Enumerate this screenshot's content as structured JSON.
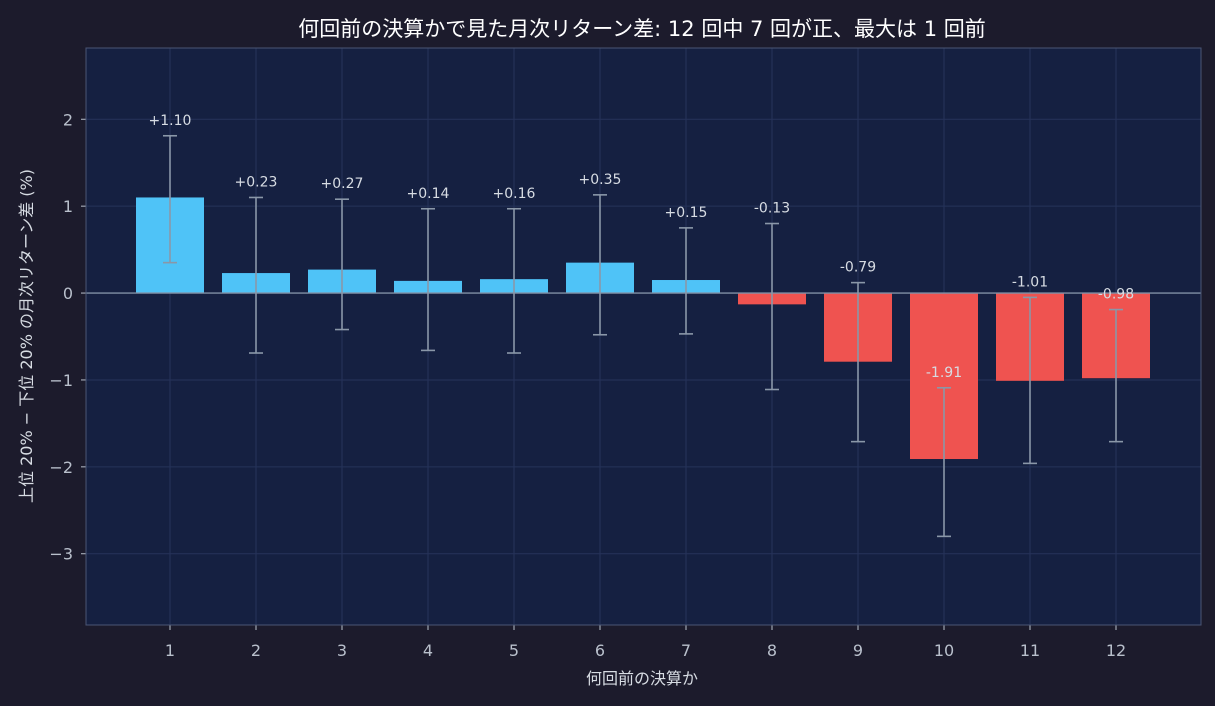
{
  "colors": {
    "page_background": "#1c1b2c",
    "plot_background": "#152041",
    "plot_border": "#4a5675",
    "grid": "#26335a",
    "positive_bar": "#4fc3f7",
    "negative_bar": "#ef5350",
    "error_bar": "#8a97a8",
    "zero_line": "#8190a6",
    "title_text": "#ffffff",
    "axis_text": "#b9c0cc",
    "label_text": "#d7dce3"
  },
  "chart_data": {
    "type": "bar",
    "title": "何回前の決算かで見た月次リターン差: 12 回中 7 回が正、最大は 1 回前",
    "xlabel": "何回前の決算か",
    "ylabel": "上位 20% − 下位 20% の月次リターン差 (%)",
    "categories": [
      "1",
      "2",
      "3",
      "4",
      "5",
      "6",
      "7",
      "8",
      "9",
      "10",
      "11",
      "12"
    ],
    "values": [
      1.1,
      0.23,
      0.27,
      0.14,
      0.16,
      0.35,
      0.15,
      -0.13,
      -0.79,
      -1.91,
      -1.01,
      -0.98
    ],
    "value_labels": [
      "+1.10",
      "+0.23",
      "+0.27",
      "+0.14",
      "+0.16",
      "+0.35",
      "+0.15",
      "-0.13",
      "-0.79",
      "-1.91",
      "-1.01",
      "-0.98"
    ],
    "error_low": [
      0.35,
      -0.69,
      -0.42,
      -0.66,
      -0.69,
      -0.48,
      -0.47,
      -1.11,
      -1.71,
      -2.8,
      -1.96,
      -1.71
    ],
    "error_high": [
      1.81,
      1.1,
      1.08,
      0.97,
      0.97,
      1.13,
      0.75,
      0.8,
      0.12,
      -1.09,
      -0.05,
      -0.19
    ],
    "yticks": [
      2,
      1,
      0,
      -1,
      -2,
      -3
    ],
    "ytick_labels": [
      "2",
      "1",
      "0",
      "−1",
      "−2",
      "−3"
    ],
    "ylim": [
      -3.82,
      2.82
    ],
    "grid": true
  }
}
